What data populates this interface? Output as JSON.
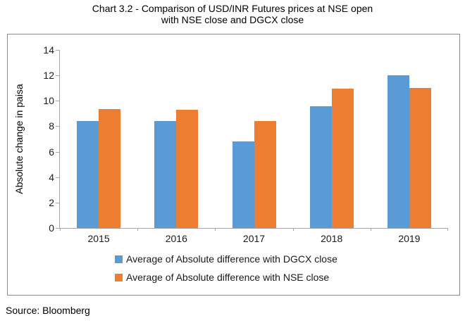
{
  "title": {
    "line1": "Chart 3.2 - Comparison of USD/INR Futures prices at NSE open",
    "line2": "with NSE close and DGCX close"
  },
  "source": "Source: Bloomberg",
  "chart_data": {
    "type": "bar",
    "title": "Chart 3.2 - Comparison of USD/INR Futures prices at NSE open with NSE close and DGCX close",
    "xlabel": "",
    "ylabel": "Absolute change in paisa",
    "categories": [
      "2015",
      "2016",
      "2017",
      "2018",
      "2019"
    ],
    "series": [
      {
        "name": "Average of Absolute difference with DGCX close",
        "color": "#5B9BD5",
        "values": [
          8.4,
          8.4,
          6.8,
          9.55,
          12.0
        ]
      },
      {
        "name": "Average of Absolute difference with NSE close",
        "color": "#ED7D31",
        "values": [
          9.35,
          9.3,
          8.4,
          10.95,
          11.0
        ]
      }
    ],
    "ylim": [
      0,
      14
    ],
    "ytick_step": 2,
    "grid": false,
    "legend_position": "bottom"
  }
}
